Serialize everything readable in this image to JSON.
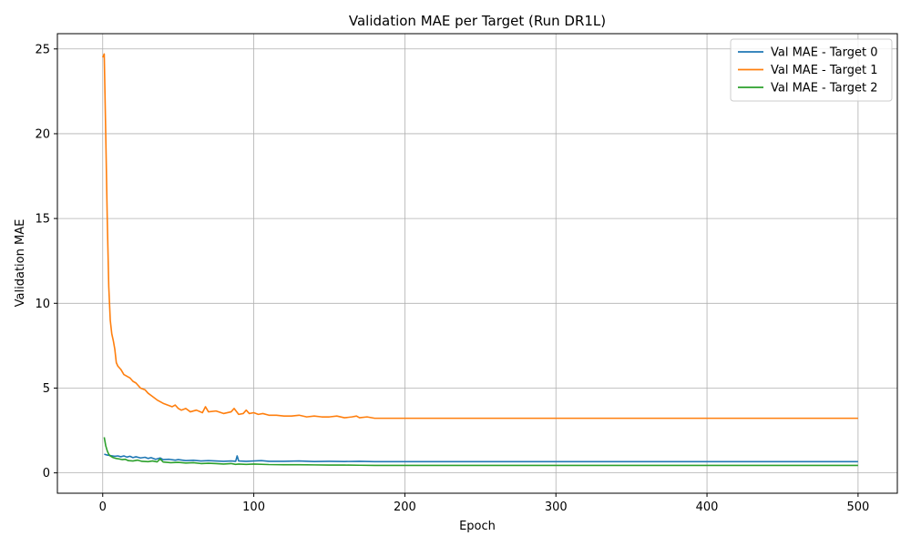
{
  "chart_data": {
    "type": "line",
    "title": "Validation MAE per Target (Run DR1L)",
    "xlabel": "Epoch",
    "ylabel": "Validation MAE",
    "xlim": [
      -30,
      526
    ],
    "ylim": [
      -1.2,
      25.9
    ],
    "xticks": [
      0,
      100,
      200,
      300,
      400,
      500
    ],
    "yticks": [
      0,
      5,
      10,
      15,
      20,
      25
    ],
    "grid": true,
    "legend_position": "top-right",
    "series": [
      {
        "name": "Val MAE - Target 0",
        "color": "#1f77b4",
        "points": [
          [
            1,
            1.1
          ],
          [
            3,
            1.05
          ],
          [
            5,
            1.02
          ],
          [
            8,
            0.98
          ],
          [
            10,
            1.0
          ],
          [
            12,
            0.95
          ],
          [
            14,
            1.0
          ],
          [
            16,
            0.93
          ],
          [
            18,
            0.98
          ],
          [
            20,
            0.9
          ],
          [
            22,
            0.95
          ],
          [
            25,
            0.88
          ],
          [
            28,
            0.92
          ],
          [
            30,
            0.85
          ],
          [
            32,
            0.9
          ],
          [
            35,
            0.8
          ],
          [
            38,
            0.88
          ],
          [
            40,
            0.78
          ],
          [
            44,
            0.8
          ],
          [
            48,
            0.75
          ],
          [
            50,
            0.78
          ],
          [
            55,
            0.72
          ],
          [
            60,
            0.74
          ],
          [
            65,
            0.7
          ],
          [
            70,
            0.72
          ],
          [
            75,
            0.7
          ],
          [
            80,
            0.68
          ],
          [
            85,
            0.7
          ],
          [
            88,
            0.68
          ],
          [
            89,
            1.0
          ],
          [
            90,
            0.7
          ],
          [
            95,
            0.68
          ],
          [
            100,
            0.7
          ],
          [
            105,
            0.72
          ],
          [
            110,
            0.68
          ],
          [
            120,
            0.68
          ],
          [
            130,
            0.7
          ],
          [
            140,
            0.67
          ],
          [
            150,
            0.68
          ],
          [
            160,
            0.67
          ],
          [
            170,
            0.68
          ],
          [
            180,
            0.66
          ],
          [
            200,
            0.66
          ],
          [
            250,
            0.66
          ],
          [
            300,
            0.66
          ],
          [
            350,
            0.66
          ],
          [
            400,
            0.66
          ],
          [
            450,
            0.66
          ],
          [
            500,
            0.66
          ]
        ]
      },
      {
        "name": "Val MAE - Target 1",
        "color": "#ff7f0e",
        "points": [
          [
            0,
            24.5
          ],
          [
            1,
            24.7
          ],
          [
            2,
            20.0
          ],
          [
            3,
            15.0
          ],
          [
            4,
            11.0
          ],
          [
            5,
            9.0
          ],
          [
            6,
            8.2
          ],
          [
            7,
            7.8
          ],
          [
            8,
            7.3
          ],
          [
            9,
            6.5
          ],
          [
            10,
            6.3
          ],
          [
            12,
            6.1
          ],
          [
            14,
            5.8
          ],
          [
            16,
            5.7
          ],
          [
            18,
            5.6
          ],
          [
            20,
            5.4
          ],
          [
            22,
            5.3
          ],
          [
            25,
            5.0
          ],
          [
            28,
            4.9
          ],
          [
            30,
            4.7
          ],
          [
            33,
            4.5
          ],
          [
            36,
            4.3
          ],
          [
            40,
            4.1
          ],
          [
            43,
            4.0
          ],
          [
            46,
            3.9
          ],
          [
            48,
            4.0
          ],
          [
            50,
            3.8
          ],
          [
            52,
            3.7
          ],
          [
            55,
            3.8
          ],
          [
            58,
            3.6
          ],
          [
            62,
            3.7
          ],
          [
            66,
            3.55
          ],
          [
            68,
            3.9
          ],
          [
            70,
            3.6
          ],
          [
            75,
            3.65
          ],
          [
            80,
            3.5
          ],
          [
            85,
            3.6
          ],
          [
            87,
            3.8
          ],
          [
            90,
            3.45
          ],
          [
            93,
            3.5
          ],
          [
            95,
            3.7
          ],
          [
            97,
            3.5
          ],
          [
            100,
            3.55
          ],
          [
            103,
            3.45
          ],
          [
            106,
            3.5
          ],
          [
            110,
            3.4
          ],
          [
            115,
            3.4
          ],
          [
            120,
            3.35
          ],
          [
            125,
            3.35
          ],
          [
            130,
            3.4
          ],
          [
            135,
            3.3
          ],
          [
            140,
            3.35
          ],
          [
            145,
            3.3
          ],
          [
            150,
            3.3
          ],
          [
            155,
            3.35
          ],
          [
            160,
            3.25
          ],
          [
            165,
            3.3
          ],
          [
            168,
            3.35
          ],
          [
            170,
            3.25
          ],
          [
            175,
            3.3
          ],
          [
            180,
            3.22
          ],
          [
            190,
            3.22
          ],
          [
            200,
            3.22
          ],
          [
            250,
            3.22
          ],
          [
            300,
            3.22
          ],
          [
            350,
            3.22
          ],
          [
            400,
            3.22
          ],
          [
            450,
            3.22
          ],
          [
            500,
            3.22
          ]
        ]
      },
      {
        "name": "Val MAE - Target 2",
        "color": "#2ca02c",
        "points": [
          [
            1,
            2.1
          ],
          [
            2,
            1.6
          ],
          [
            3,
            1.3
          ],
          [
            4,
            1.1
          ],
          [
            5,
            1.0
          ],
          [
            7,
            0.9
          ],
          [
            9,
            0.85
          ],
          [
            11,
            0.82
          ],
          [
            13,
            0.78
          ],
          [
            15,
            0.8
          ],
          [
            17,
            0.72
          ],
          [
            20,
            0.7
          ],
          [
            23,
            0.75
          ],
          [
            26,
            0.68
          ],
          [
            30,
            0.66
          ],
          [
            33,
            0.7
          ],
          [
            36,
            0.65
          ],
          [
            38,
            0.82
          ],
          [
            40,
            0.64
          ],
          [
            45,
            0.6
          ],
          [
            50,
            0.62
          ],
          [
            55,
            0.58
          ],
          [
            60,
            0.6
          ],
          [
            65,
            0.55
          ],
          [
            70,
            0.57
          ],
          [
            75,
            0.55
          ],
          [
            80,
            0.52
          ],
          [
            85,
            0.55
          ],
          [
            88,
            0.5
          ],
          [
            90,
            0.52
          ],
          [
            95,
            0.5
          ],
          [
            100,
            0.52
          ],
          [
            110,
            0.49
          ],
          [
            120,
            0.48
          ],
          [
            130,
            0.48
          ],
          [
            140,
            0.47
          ],
          [
            150,
            0.46
          ],
          [
            160,
            0.46
          ],
          [
            170,
            0.45
          ],
          [
            180,
            0.44
          ],
          [
            200,
            0.44
          ],
          [
            250,
            0.44
          ],
          [
            300,
            0.44
          ],
          [
            350,
            0.44
          ],
          [
            400,
            0.44
          ],
          [
            450,
            0.44
          ],
          [
            500,
            0.44
          ]
        ]
      }
    ]
  }
}
